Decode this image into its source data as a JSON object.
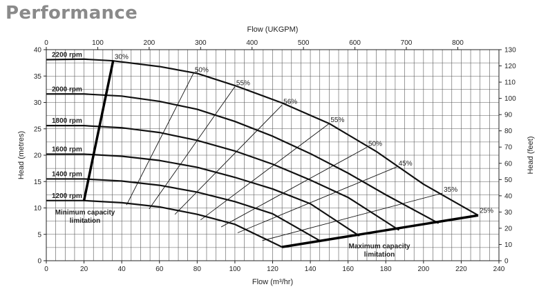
{
  "page": {
    "title": "Performance"
  },
  "chart_data": {
    "type": "line",
    "title": "Performance",
    "xlabel": "Flow (m³/hr)",
    "x2label": "Flow (UKGPM)",
    "ylabel": "Head (metres)",
    "y2label": "Head (feet)",
    "xlim": [
      0,
      240
    ],
    "ylim": [
      0,
      40
    ],
    "x2lim": [
      0,
      880
    ],
    "y2lim": [
      0,
      130
    ],
    "xticks": [
      "0",
      "20",
      "40",
      "60",
      "80",
      "100",
      "120",
      "140",
      "160",
      "180",
      "200",
      "220",
      "240"
    ],
    "yticks": [
      "0",
      "5",
      "10",
      "15",
      "20",
      "25",
      "30",
      "35",
      "40"
    ],
    "x2ticks": [
      "0",
      "100",
      "200",
      "300",
      "400",
      "500",
      "600",
      "700",
      "800"
    ],
    "y2ticks": [
      "0",
      "10",
      "20",
      "30",
      "40",
      "50",
      "60",
      "70",
      "80",
      "90",
      "100",
      "110",
      "120",
      "130"
    ],
    "grid": true,
    "series": [
      {
        "name": "2200 rpm",
        "x": [
          0,
          20,
          35,
          60,
          80,
          100,
          125,
          150,
          175,
          200,
          229
        ],
        "y": [
          38.1,
          38.2,
          37.9,
          36.8,
          35.5,
          33.2,
          29.9,
          26.0,
          20.7,
          14.5,
          8.6
        ]
      },
      {
        "name": "2000 rpm",
        "x": [
          0,
          20,
          40,
          60,
          80,
          100,
          120,
          140,
          160,
          180,
          208
        ],
        "y": [
          31.6,
          31.6,
          31.2,
          30.2,
          28.7,
          26.4,
          23.6,
          20.3,
          16.6,
          12.5,
          7.1
        ]
      },
      {
        "name": "1800 rpm",
        "x": [
          0,
          20,
          40,
          60,
          80,
          100,
          120,
          140,
          160,
          187
        ],
        "y": [
          25.6,
          25.6,
          25.2,
          24.3,
          22.8,
          20.8,
          18.3,
          15.3,
          12.0,
          5.8
        ]
      },
      {
        "name": "1600 rpm",
        "x": [
          0,
          20,
          40,
          60,
          80,
          100,
          120,
          140,
          166
        ],
        "y": [
          20.2,
          20.2,
          19.8,
          19.0,
          17.7,
          15.8,
          13.6,
          10.8,
          4.7
        ]
      },
      {
        "name": "1400 rpm",
        "x": [
          0,
          20,
          40,
          60,
          80,
          100,
          120,
          145
        ],
        "y": [
          15.5,
          15.5,
          15.1,
          14.3,
          13.0,
          11.2,
          8.9,
          3.8
        ]
      },
      {
        "name": "1200 rpm",
        "x": [
          0,
          20,
          40,
          60,
          80,
          100,
          125
        ],
        "y": [
          11.4,
          11.4,
          11.0,
          10.2,
          8.8,
          6.9,
          2.6
        ]
      }
    ],
    "efficiency_lines": [
      {
        "label": "30%",
        "x": 35.5,
        "y": 38.0
      },
      {
        "label": "50%",
        "x": 78,
        "y": 35.5
      },
      {
        "label": "55%",
        "x": 100,
        "y": 33.0
      },
      {
        "label": "56%",
        "x": 125,
        "y": 29.5
      },
      {
        "label": "55%",
        "x": 150,
        "y": 26.0
      },
      {
        "label": "50%",
        "x": 170,
        "y": 21.5
      },
      {
        "label": "45%",
        "x": 186,
        "y": 17.8
      },
      {
        "label": "35%",
        "x": 210,
        "y": 12.8
      },
      {
        "label": "25%",
        "x": 229,
        "y": 8.8
      }
    ],
    "limits": {
      "minimum": {
        "label_line1": "Minimum capacity",
        "label_line2": "limitation",
        "points": [
          [
            20,
            11.4
          ],
          [
            35.5,
            38.0
          ]
        ]
      },
      "maximum": {
        "label_line1": "Maximum capacity",
        "label_line2": "limitation",
        "points": [
          [
            125,
            2.6
          ],
          [
            229,
            8.6
          ]
        ]
      }
    }
  }
}
